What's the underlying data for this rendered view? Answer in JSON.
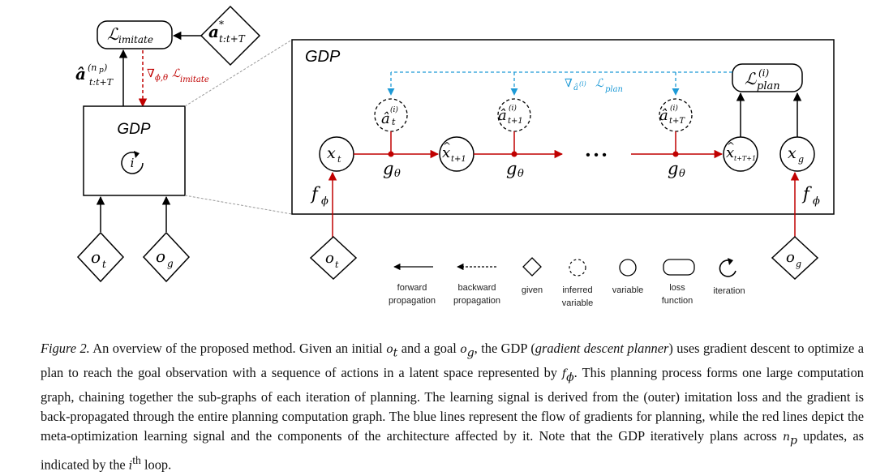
{
  "left_panel": {
    "loss_label": "ℒ",
    "loss_sub": "imitate",
    "target_label": "a",
    "target_star": "*",
    "target_sub": "t:t+T",
    "output_hat": "â",
    "output_sup": "(n",
    "output_sup_p": "p",
    "output_sup_close": ")",
    "output_sub": "t:t+T",
    "grad_label": "∇",
    "grad_sub": "ϕ,θ",
    "grad_loss": "ℒ",
    "grad_loss_sub": "imitate",
    "gdp_title": "GDP",
    "loop_label": "i",
    "obs_label": "o",
    "obs_sub": "t",
    "goal_label": "o",
    "goal_sub": "g"
  },
  "right_panel": {
    "title": "GDP",
    "plan_loss": "ℒ",
    "plan_loss_sup": "(i)",
    "plan_loss_sub": "plan",
    "plan_grad": "∇",
    "plan_grad_sub": "â",
    "plan_grad_sub_sup": "(i)",
    "plan_grad_loss": "ℒ",
    "plan_grad_loss_sub": "plan",
    "actions": [
      {
        "hat": "â",
        "sup": "(i)",
        "sub": "t"
      },
      {
        "hat": "â",
        "sup": "(i)",
        "sub": "t+1"
      },
      {
        "hat": "â",
        "sup": "(i)",
        "sub": "t+T"
      }
    ],
    "states": [
      {
        "label": "x",
        "sub": "t",
        "hat": ""
      },
      {
        "label": "x",
        "sub": "t+1",
        "hat": "^"
      },
      {
        "label": "x",
        "sub": "t+T+1",
        "hat": "^"
      },
      {
        "label": "x",
        "sub": "g",
        "hat": ""
      }
    ],
    "dynamics_label": "g",
    "dynamics_sub": "θ",
    "ellipsis": "• • •",
    "encoder_label": "f",
    "encoder_sub": "ϕ",
    "obs_label": "o",
    "obs_sub": "t",
    "goal_label": "o",
    "goal_sub": "g"
  },
  "legend": [
    {
      "line1": "forward",
      "line2": "propagation"
    },
    {
      "line1": "backward",
      "line2": "propagation"
    },
    {
      "line1": "given",
      "line2": ""
    },
    {
      "line1": "inferred",
      "line2": "variable"
    },
    {
      "line1": "variable",
      "line2": ""
    },
    {
      "line1": "loss",
      "line2": "function"
    },
    {
      "line1": "iteration",
      "line2": ""
    }
  ],
  "colors": {
    "red": "#c00000",
    "blue": "#1e9ad6",
    "black": "#000000"
  },
  "caption": {
    "fig_label": "Figure 2.",
    "p1": " An overview of the proposed method. Given an initial ",
    "ot": "o",
    "ot_sub": "t",
    "p2": " and a goal ",
    "og": "o",
    "og_sub": "g",
    "p3": ", the GDP (",
    "gdp_italic": "gradient descent planner",
    "p4": ") uses gradient descent to optimize a plan to reach the goal observation with a sequence of actions in a latent space represented by ",
    "f": "f",
    "f_sub": "ϕ",
    "p5": ". This planning process forms one large computation graph, chaining together the sub-graphs of each iteration of planning. The learning signal is derived from the (outer) imitation loss and the gradient is back-propagated through the entire planning computation graph. The blue lines represent the flow of gradients for planning, while the red lines depict the meta-optimization learning signal and the components of the architecture affected by it. Note that the GDP iteratively plans across ",
    "np": "n",
    "np_sub": "p",
    "p6": " updates, as indicated by the ",
    "ith": "i",
    "ith_sup": "th",
    "p7": " loop."
  }
}
